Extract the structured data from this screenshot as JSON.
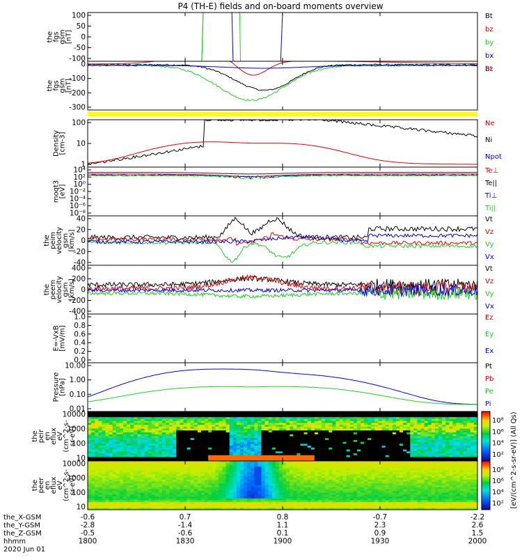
{
  "title": "P4 (TH-E) fields and on-board moments overview",
  "colors": {
    "black": "#000000",
    "red": "#dd0000",
    "green": "#22cc22",
    "blue": "#0000dd",
    "yellow": "#ffff00"
  },
  "chart_data": [
    {
      "id": "fgs_gsm",
      "type": "line",
      "ylabel": [
        "the",
        "fgs",
        "gsm",
        "[nT]"
      ],
      "ylim": [
        -100,
        100
      ],
      "yticks": [
        "100",
        "50",
        "0",
        "-50",
        "-100"
      ],
      "legend": [
        "Bt",
        "bz",
        "by",
        "bx"
      ]
    },
    {
      "id": "fgs_gsm_zoom",
      "type": "line",
      "ylabel": [
        "the",
        "fgs",
        "gsm",
        "[nT]"
      ],
      "ylim": [
        -320,
        30
      ],
      "yticks": [
        "0",
        "-100",
        "-200",
        "-300"
      ],
      "legend": [
        "Bt",
        "bz",
        "by",
        "bx"
      ]
    },
    {
      "id": "density",
      "type": "line",
      "ylabel": [
        "Density",
        "[cm-3]"
      ],
      "scale": "log",
      "ylim": [
        0.2,
        200
      ],
      "yticks": [
        "100",
        "10",
        "1"
      ],
      "legend": [
        "Ne",
        "Ni",
        "Npot"
      ]
    },
    {
      "id": "temperature",
      "type": "line",
      "ylabel": [
        "moqt3",
        "[eV]"
      ],
      "scale": "log",
      "ylim": [
        1e-08,
        10000.0
      ],
      "yticks": [
        "10⁴",
        "10²",
        "10⁰",
        "10⁻²",
        "10⁻⁴",
        "10⁻⁶",
        "10⁻⁸"
      ],
      "legend": [
        "Te⊥",
        "Te||",
        "Ti⊥",
        "Ti||"
      ]
    },
    {
      "id": "peim_velocity",
      "type": "line",
      "ylabel": [
        "the",
        "peim",
        "velocity",
        "gsm",
        "[km/s]"
      ],
      "ylim": [
        -40,
        40
      ],
      "yticks": [
        "40",
        "20",
        "0",
        "-20",
        "-40"
      ],
      "legend": [
        "Vt",
        "Vz",
        "Vy",
        "Vx"
      ]
    },
    {
      "id": "peem_velocity",
      "type": "line",
      "ylabel": [
        "the",
        "peem",
        "velocity",
        "gsm",
        "[km/s]"
      ],
      "ylim": [
        -400,
        400
      ],
      "yticks": [
        "400",
        "200",
        "0",
        "-200",
        "-400"
      ],
      "legend": [
        "Vt",
        "Vz",
        "Vy",
        "Vx"
      ]
    },
    {
      "id": "efield",
      "type": "line",
      "ylabel": [
        "E=-VxB",
        "[mV/m]"
      ],
      "ylim": [
        0,
        1
      ],
      "yticks": [
        "1.0",
        "0.8",
        "0.6",
        "0.4",
        "0.2",
        "0.0"
      ],
      "legend": [
        "Ez",
        "Ey",
        "Ex"
      ]
    },
    {
      "id": "pressure",
      "type": "line",
      "ylabel": [
        "Pressure",
        "[nPa]"
      ],
      "scale": "log",
      "ylim": [
        0.007,
        12
      ],
      "yticks": [
        "10.00",
        "1.00",
        "0.10",
        "0.01"
      ],
      "legend": [
        "Pt",
        "Pb",
        "Pe",
        "Pi"
      ]
    },
    {
      "id": "peir_spec",
      "type": "heatmap",
      "ylabel": [
        "the",
        "peir",
        "en",
        "eflux",
        "eV",
        "(cm^2-s-",
        "sr-eV)"
      ],
      "scale": "log",
      "yticks": [
        "10000",
        "1000",
        "100",
        "10"
      ]
    },
    {
      "id": "peer_spec",
      "type": "heatmap",
      "ylabel": [
        "the",
        "peer",
        "en",
        "eflux",
        "eV",
        "(cm^2-s-",
        "sr-eV)"
      ],
      "scale": "log",
      "yticks": [
        "10000",
        "1000",
        "100",
        "10"
      ]
    }
  ],
  "colorbar": {
    "label": "[eV/(cm^2-s-sr-eV)] (All Qs)",
    "ticks_top": [
      "10⁸",
      "10⁶",
      "10⁴",
      "10²"
    ],
    "ticks_bottom": [
      "10⁸",
      "10⁶",
      "10⁴",
      "10²"
    ]
  },
  "xaxis": {
    "rows": [
      {
        "label": "the_X-GSM",
        "values": [
          "-0.6",
          "0.7",
          "0.8",
          "-0.7",
          "-2.2"
        ]
      },
      {
        "label": "the_Y-GSM",
        "values": [
          "-2.8",
          "-1.4",
          "1.1",
          "2.3",
          "2.6"
        ]
      },
      {
        "label": "the_Z-GSM",
        "values": [
          "-0.5",
          "-0.6",
          "0.1",
          "0.9",
          "1.5"
        ]
      },
      {
        "label": "hhmm",
        "values": [
          "1800",
          "1830",
          "1900",
          "1930",
          "2000"
        ]
      }
    ],
    "date": "2020 Jun 01"
  }
}
